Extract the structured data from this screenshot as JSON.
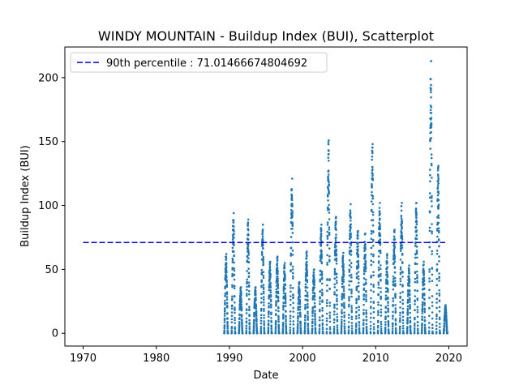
{
  "chart_data": {
    "type": "scatter",
    "title": "WINDY MOUNTAIN - Buildup Index (BUI), Scatterplot",
    "xlabel": "Date",
    "ylabel": "Buildup Index (BUI)",
    "xlim": [
      1967.5,
      2022.5
    ],
    "ylim": [
      -10,
      224
    ],
    "x_ticks": [
      1970,
      1980,
      1990,
      2000,
      2010,
      2020
    ],
    "y_ticks": [
      0,
      50,
      100,
      150,
      200
    ],
    "grid": false,
    "legend_position": "top-left",
    "colors": {
      "points": "#1f77b4",
      "percentile_line": "#0000cc"
    },
    "percentile_line": {
      "label": "90th percentile : 71.01466674804692",
      "value": 71.01466674804692,
      "x_range": [
        1970,
        2019.5
      ]
    },
    "seasons": [
      {
        "year": 1989,
        "max": 62
      },
      {
        "year": 1990,
        "max": 94
      },
      {
        "year": 1991,
        "max": 36
      },
      {
        "year": 1992,
        "max": 89
      },
      {
        "year": 1993,
        "max": 36
      },
      {
        "year": 1994,
        "max": 85
      },
      {
        "year": 1995,
        "max": 56
      },
      {
        "year": 1996,
        "max": 60
      },
      {
        "year": 1997,
        "max": 55
      },
      {
        "year": 1998,
        "max": 121
      },
      {
        "year": 1999,
        "max": 40
      },
      {
        "year": 2000,
        "max": 64
      },
      {
        "year": 2001,
        "max": 50
      },
      {
        "year": 2002,
        "max": 85
      },
      {
        "year": 2003,
        "max": 151
      },
      {
        "year": 2004,
        "max": 91
      },
      {
        "year": 2005,
        "max": 63
      },
      {
        "year": 2006,
        "max": 101
      },
      {
        "year": 2007,
        "max": 80
      },
      {
        "year": 2008,
        "max": 78
      },
      {
        "year": 2009,
        "max": 148
      },
      {
        "year": 2010,
        "max": 102
      },
      {
        "year": 2011,
        "max": 62
      },
      {
        "year": 2012,
        "max": 81
      },
      {
        "year": 2013,
        "max": 102
      },
      {
        "year": 2014,
        "max": 53
      },
      {
        "year": 2015,
        "max": 102
      },
      {
        "year": 2016,
        "max": 56
      },
      {
        "year": 2017,
        "max": 213
      },
      {
        "year": 2018,
        "max": 131
      },
      {
        "year": 2019,
        "max": 22
      }
    ]
  }
}
